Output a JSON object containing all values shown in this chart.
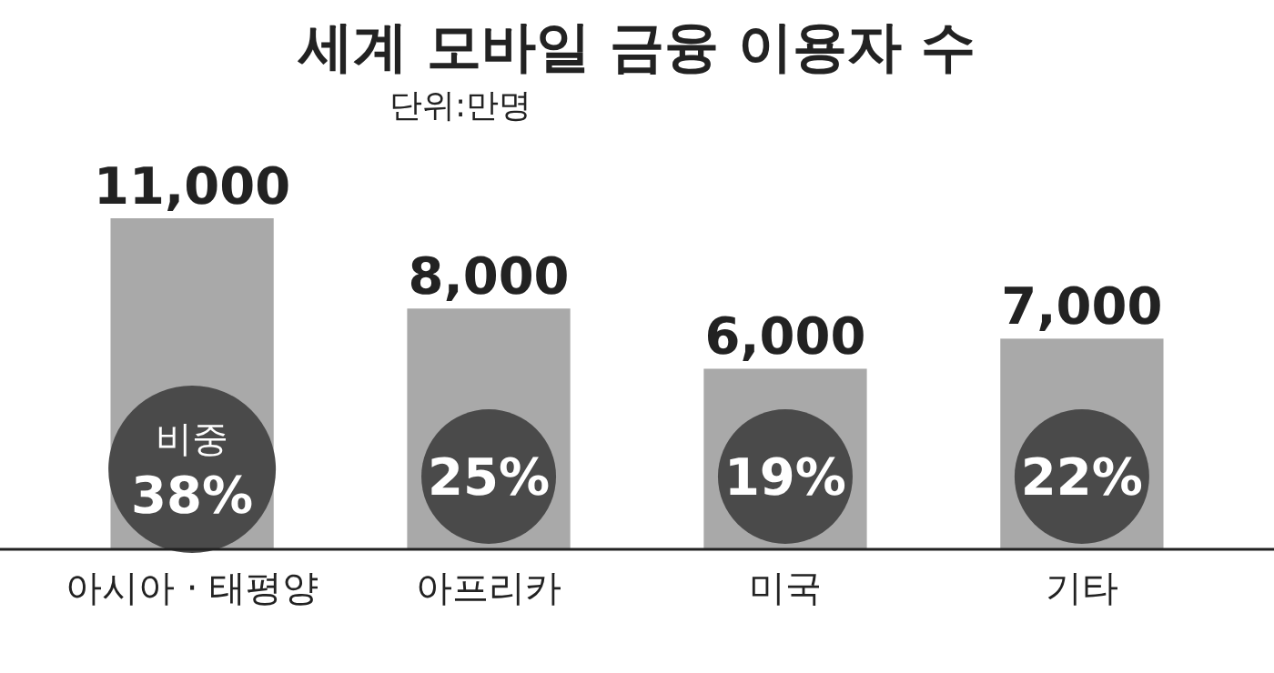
{
  "chart_data": {
    "type": "bar",
    "title": "세계 모바일 금융 이용자 수",
    "subtitle": "단위:만명",
    "categories": [
      "아시아 · 태평양",
      "아프리카",
      "미국",
      "기타"
    ],
    "values": [
      11000,
      8000,
      6000,
      7000
    ],
    "color": "#a9a9a9",
    "value_labels": [
      "11,000",
      "8,000",
      "6,000",
      "7,000"
    ],
    "annotations": [
      "비중\n38%",
      "25%",
      "19%",
      "22%"
    ]
  }
}
